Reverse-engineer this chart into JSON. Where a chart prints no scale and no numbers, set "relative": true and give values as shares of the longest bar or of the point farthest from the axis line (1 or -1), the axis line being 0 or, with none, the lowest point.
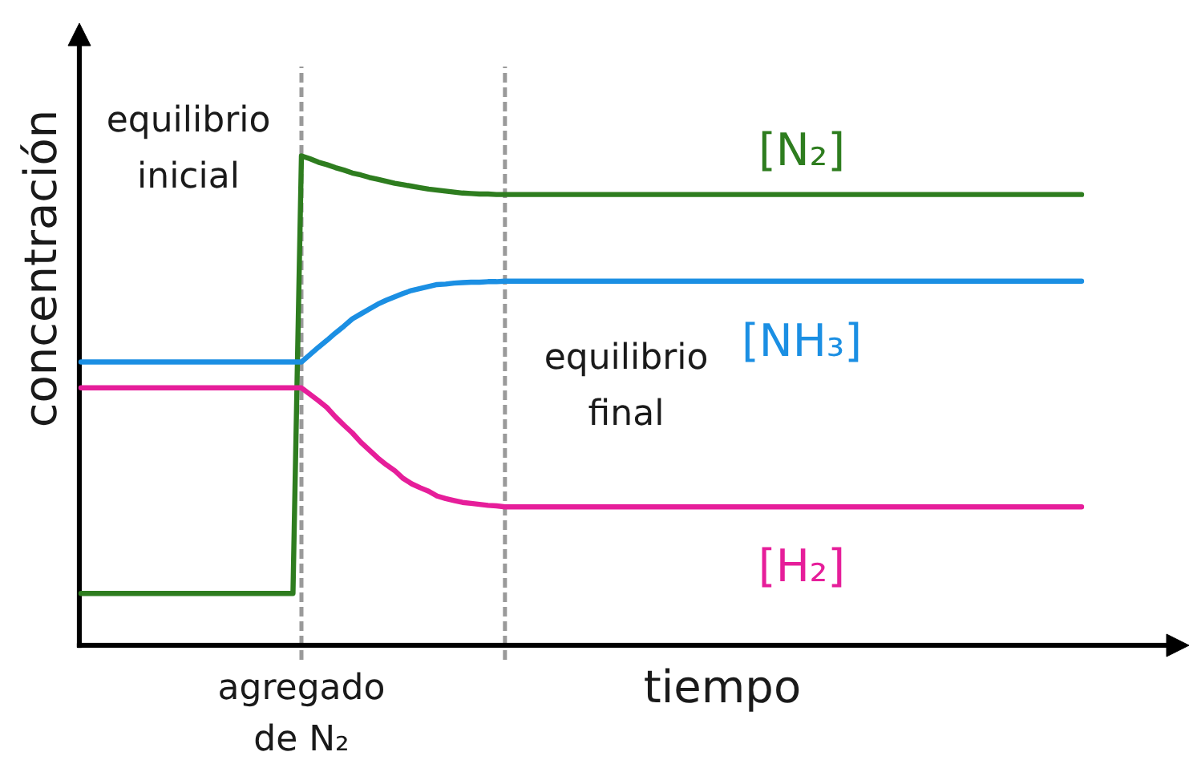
{
  "chart_data": {
    "type": "line",
    "relative": true,
    "xlabel": "tiempo",
    "ylabel": "concentración",
    "categories": [
      null,
      null,
      null,
      null,
      null,
      null,
      null,
      null,
      null,
      null,
      null,
      null,
      null,
      null,
      null,
      null,
      null,
      null,
      null,
      null,
      null,
      null,
      null,
      null,
      null,
      null,
      null,
      null,
      null,
      null,
      null,
      null,
      null,
      null,
      null,
      null,
      null,
      null,
      null,
      null,
      null,
      null,
      null,
      null,
      null,
      null,
      null,
      null,
      null,
      null,
      null,
      null,
      null,
      null,
      null,
      null,
      null,
      null,
      null,
      null,
      null,
      null,
      null,
      null,
      null,
      null,
      null,
      null,
      null,
      null,
      null,
      null,
      null,
      null,
      null,
      null,
      null,
      null,
      null,
      null,
      null,
      null,
      null,
      null,
      null,
      null,
      null,
      null,
      null,
      null,
      null,
      null,
      null,
      null,
      null,
      null,
      null,
      null,
      null,
      null,
      null,
      null,
      null,
      null,
      null,
      null,
      null,
      null,
      null,
      null,
      null,
      null,
      null,
      null,
      null,
      null,
      null,
      null,
      null
    ],
    "series": [
      {
        "name": "[N₂]",
        "color": "#2e7d1f",
        "values": [
          0.106,
          0.106,
          0.106,
          0.106,
          0.106,
          0.106,
          0.106,
          0.106,
          0.106,
          0.106,
          0.106,
          0.106,
          0.106,
          0.106,
          0.106,
          0.106,
          0.106,
          0.106,
          0.106,
          0.106,
          0.106,
          0.106,
          0.106,
          0.106,
          0.106,
          0.106,
          1,
          0.994,
          0.987,
          0.982,
          0.976,
          0.971,
          0.965,
          0.961,
          0.956,
          0.952,
          0.948,
          0.944,
          0.941,
          0.938,
          0.935,
          0.932,
          0.93,
          0.928,
          0.926,
          0.924,
          0.923,
          0.922,
          0.922,
          0.921,
          0.921,
          0.921,
          0.921,
          0.921,
          0.921,
          0.921,
          0.921,
          0.921,
          0.921,
          0.921,
          0.921,
          0.921,
          0.921,
          0.921,
          0.921,
          0.921,
          0.921,
          0.921,
          0.921,
          0.921,
          0.921,
          0.921,
          0.921,
          0.921,
          0.921,
          0.921,
          0.921,
          0.921,
          0.921,
          0.921,
          0.921,
          0.921,
          0.921,
          0.921,
          0.921,
          0.921,
          0.921,
          0.921,
          0.921,
          0.921,
          0.921,
          0.921,
          0.921,
          0.921,
          0.921,
          0.921,
          0.921,
          0.921,
          0.921,
          0.921,
          0.921,
          0.921,
          0.921,
          0.921,
          0.921,
          0.921,
          0.921,
          0.921,
          0.921,
          0.921,
          0.921,
          0.921,
          0.921,
          0.921,
          0.921,
          0.921,
          0.921,
          0.921,
          0.921
        ]
      },
      {
        "name": "[NH₃]",
        "color": "#1b8fe3",
        "values": [
          0.579,
          0.579,
          0.579,
          0.579,
          0.579,
          0.579,
          0.579,
          0.579,
          0.579,
          0.579,
          0.579,
          0.579,
          0.579,
          0.579,
          0.579,
          0.579,
          0.579,
          0.579,
          0.579,
          0.579,
          0.579,
          0.579,
          0.579,
          0.579,
          0.579,
          0.579,
          0.579,
          0.594,
          0.609,
          0.623,
          0.638,
          0.652,
          0.667,
          0.677,
          0.687,
          0.697,
          0.705,
          0.712,
          0.719,
          0.725,
          0.729,
          0.733,
          0.737,
          0.738,
          0.74,
          0.741,
          0.742,
          0.742,
          0.743,
          0.743,
          0.744,
          0.744,
          0.744,
          0.744,
          0.744,
          0.744,
          0.744,
          0.744,
          0.744,
          0.744,
          0.744,
          0.744,
          0.744,
          0.744,
          0.744,
          0.744,
          0.744,
          0.744,
          0.744,
          0.744,
          0.744,
          0.744,
          0.744,
          0.744,
          0.744,
          0.744,
          0.744,
          0.744,
          0.744,
          0.744,
          0.744,
          0.744,
          0.744,
          0.744,
          0.744,
          0.744,
          0.744,
          0.744,
          0.744,
          0.744,
          0.744,
          0.744,
          0.744,
          0.744,
          0.744,
          0.744,
          0.744,
          0.744,
          0.744,
          0.744,
          0.744,
          0.744,
          0.744,
          0.744,
          0.744,
          0.744,
          0.744,
          0.744,
          0.744,
          0.744,
          0.744,
          0.744,
          0.744,
          0.744,
          0.744,
          0.744,
          0.744,
          0.744,
          0.744
        ]
      },
      {
        "name": "[H₂]",
        "color": "#e61e9a",
        "values": [
          0.526,
          0.526,
          0.526,
          0.526,
          0.526,
          0.526,
          0.526,
          0.526,
          0.526,
          0.526,
          0.526,
          0.526,
          0.526,
          0.526,
          0.526,
          0.526,
          0.526,
          0.526,
          0.526,
          0.526,
          0.526,
          0.526,
          0.526,
          0.526,
          0.526,
          0.526,
          0.526,
          0.513,
          0.5,
          0.486,
          0.467,
          0.45,
          0.434,
          0.415,
          0.399,
          0.383,
          0.369,
          0.357,
          0.341,
          0.33,
          0.322,
          0.315,
          0.305,
          0.3,
          0.296,
          0.292,
          0.29,
          0.288,
          0.286,
          0.285,
          0.283,
          0.283,
          0.283,
          0.283,
          0.283,
          0.283,
          0.283,
          0.283,
          0.283,
          0.283,
          0.283,
          0.283,
          0.283,
          0.283,
          0.283,
          0.283,
          0.283,
          0.283,
          0.283,
          0.283,
          0.283,
          0.283,
          0.283,
          0.283,
          0.283,
          0.283,
          0.283,
          0.283,
          0.283,
          0.283,
          0.283,
          0.283,
          0.283,
          0.283,
          0.283,
          0.283,
          0.283,
          0.283,
          0.283,
          0.283,
          0.283,
          0.283,
          0.283,
          0.283,
          0.283,
          0.283,
          0.283,
          0.283,
          0.283,
          0.283,
          0.283,
          0.283,
          0.283,
          0.283,
          0.283,
          0.283,
          0.283,
          0.283,
          0.283,
          0.283,
          0.283,
          0.283,
          0.283,
          0.283,
          0.283,
          0.283,
          0.283,
          0.283,
          0.283
        ]
      }
    ],
    "annotations": [
      "equilibrio inicial",
      "agregado de N₂",
      "equilibrio final"
    ]
  }
}
